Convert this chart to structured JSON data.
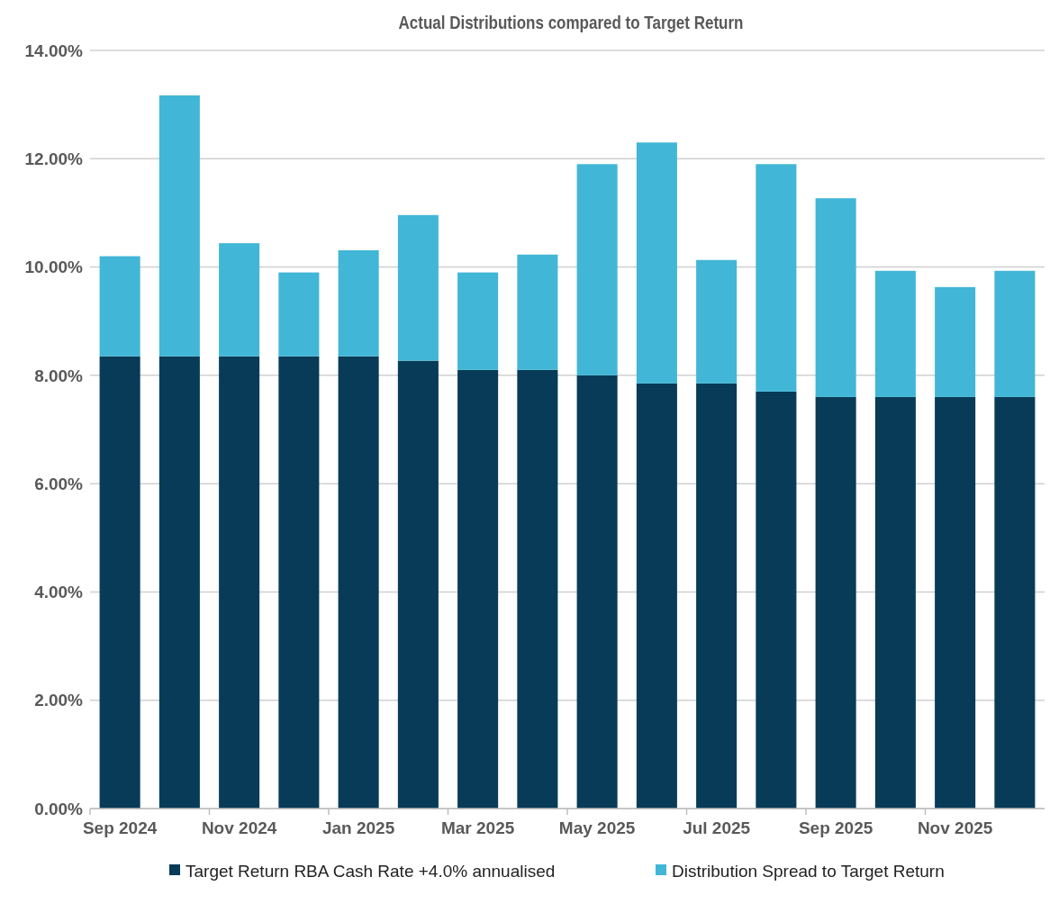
{
  "chart_data": {
    "type": "bar",
    "title": "Actual Distributions compared to Target Return",
    "stacked": true,
    "categories": [
      "Sep 2024",
      null,
      "Nov 2024",
      null,
      "Jan 2025",
      null,
      "Mar 2025",
      null,
      "May 2025",
      null,
      "Jul 2025",
      null,
      "Sep 2025",
      null,
      "Nov 2025",
      null
    ],
    "series": [
      {
        "name": "Target Return RBA Cash Rate +4.0% annualised",
        "color": "#073b57",
        "values": [
          8.35,
          8.35,
          8.35,
          8.35,
          8.35,
          8.27,
          8.1,
          8.1,
          8.0,
          7.85,
          7.85,
          7.7,
          7.6,
          7.6,
          7.6,
          7.6
        ]
      },
      {
        "name": "Distribution Spread to Target Return",
        "color": "#42b6d6",
        "values": [
          1.85,
          4.82,
          2.09,
          1.55,
          1.96,
          2.69,
          1.8,
          2.13,
          3.9,
          4.45,
          2.28,
          4.2,
          3.67,
          2.33,
          2.03,
          2.33
        ]
      }
    ],
    "ylim": [
      0,
      14
    ],
    "yticks": [
      {
        "value": 0,
        "label": "0.00%"
      },
      {
        "value": 2,
        "label": "2.00%"
      },
      {
        "value": 4,
        "label": "4.00%"
      },
      {
        "value": 6,
        "label": "6.00%"
      },
      {
        "value": 8,
        "label": "8.00%"
      },
      {
        "value": 10,
        "label": "10.00%"
      },
      {
        "value": 12,
        "label": "12.00%"
      },
      {
        "value": 14,
        "label": "14.00%"
      }
    ],
    "grid": "y",
    "legend": "bottom"
  }
}
